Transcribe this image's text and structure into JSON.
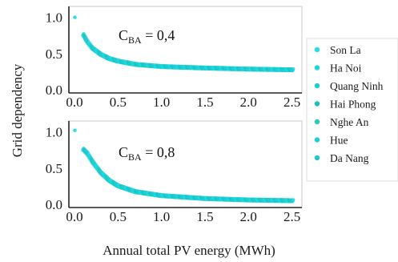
{
  "chart_data": {
    "type": "scatter",
    "ylabel": "Grid dependency",
    "xlabel": "Annual total PV energy (MWh)",
    "xlim": [
      0.0,
      2.55
    ],
    "ylim": [
      0.0,
      1.05
    ],
    "xticks": [
      "0.0",
      "0.5",
      "1.0",
      "1.5",
      "2.0",
      "2.5"
    ],
    "yticks": [
      "0.0",
      "0.5",
      "1.0"
    ],
    "legend_position": "right",
    "series": [
      {
        "name": "Son La",
        "color": "#1fe0e8"
      },
      {
        "name": "Ha Noi",
        "color": "#1ad6dd"
      },
      {
        "name": "Quang Ninh",
        "color": "#17d0d6"
      },
      {
        "name": "Hai Phong",
        "color": "#16c2c4"
      },
      {
        "name": "Nghe An",
        "color": "#2cc8b8"
      },
      {
        "name": "Hue",
        "color": "#1dd0de"
      },
      {
        "name": "Da Nang",
        "color": "#18c8d4"
      }
    ],
    "panels": [
      {
        "annotation_main": "C",
        "annotation_sub": "BA",
        "annotation_value": " = 0,4",
        "points": [
          {
            "x": 0.0,
            "y": 1.0
          },
          {
            "x": 0.1,
            "y": 0.76
          },
          {
            "x": 0.15,
            "y": 0.66
          },
          {
            "x": 0.2,
            "y": 0.58
          },
          {
            "x": 0.3,
            "y": 0.49
          },
          {
            "x": 0.4,
            "y": 0.43
          },
          {
            "x": 0.5,
            "y": 0.395
          },
          {
            "x": 0.7,
            "y": 0.35
          },
          {
            "x": 1.0,
            "y": 0.32
          },
          {
            "x": 1.5,
            "y": 0.3
          },
          {
            "x": 2.0,
            "y": 0.285
          },
          {
            "x": 2.5,
            "y": 0.275
          }
        ]
      },
      {
        "annotation_main": "C",
        "annotation_sub": "BA",
        "annotation_value": " = 0,8",
        "points": [
          {
            "x": 0.0,
            "y": 1.02
          },
          {
            "x": 0.1,
            "y": 0.76
          },
          {
            "x": 0.15,
            "y": 0.7
          },
          {
            "x": 0.2,
            "y": 0.6
          },
          {
            "x": 0.3,
            "y": 0.44
          },
          {
            "x": 0.4,
            "y": 0.33
          },
          {
            "x": 0.5,
            "y": 0.255
          },
          {
            "x": 0.7,
            "y": 0.175
          },
          {
            "x": 1.0,
            "y": 0.12
          },
          {
            "x": 1.5,
            "y": 0.08
          },
          {
            "x": 2.0,
            "y": 0.06
          },
          {
            "x": 2.5,
            "y": 0.05
          }
        ]
      }
    ]
  }
}
